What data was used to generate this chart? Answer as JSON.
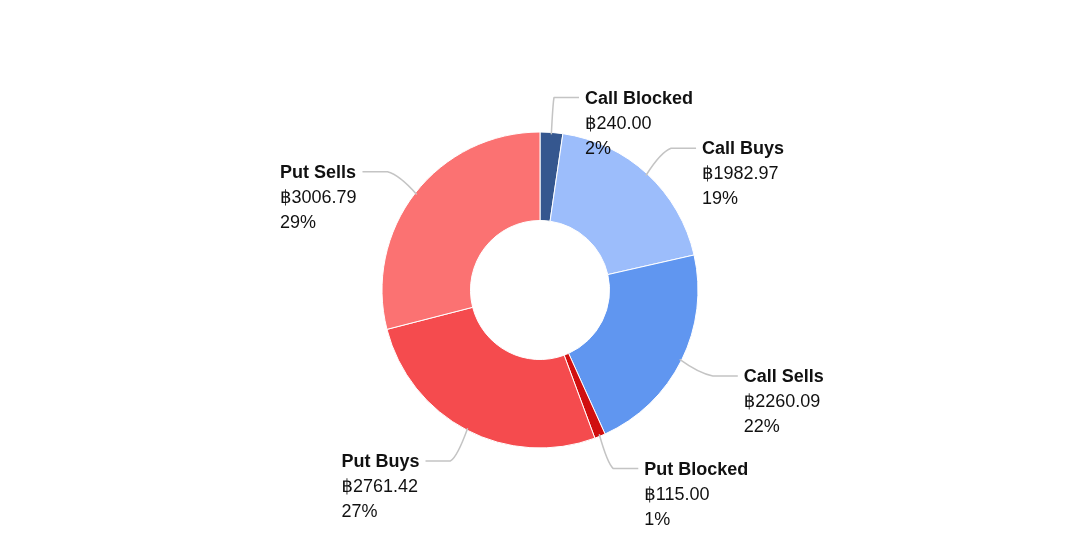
{
  "chart_data": {
    "type": "donut",
    "categories": [
      "Call Blocked",
      "Call Buys",
      "Call Sells",
      "Put Blocked",
      "Put Buys",
      "Put Sells"
    ],
    "values": [
      240,
      1982.97,
      2260.09,
      115,
      2761.42,
      3006.79
    ],
    "colors": [
      "#35578f",
      "#9cbdfb",
      "#6096f0",
      "#d00f0f",
      "#f54b4e",
      "#fb7272"
    ],
    "value_labels": [
      "฿240.00\n2%",
      "฿1982.97\n19%",
      "฿2260.09\n22%",
      "฿115.00\n1%",
      "฿2761.42\n27%",
      "฿3006.79\n29%"
    ]
  }
}
